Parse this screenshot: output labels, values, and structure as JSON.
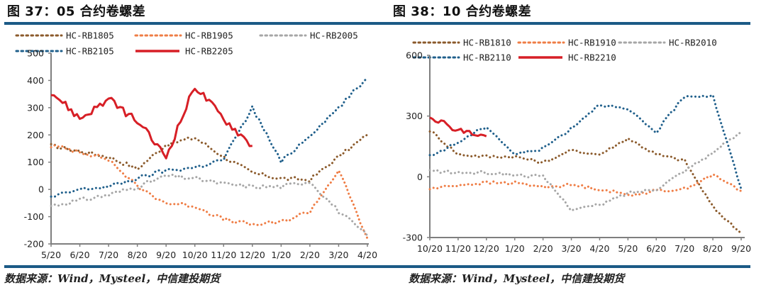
{
  "figures": [
    {
      "title": "图 37：05 合约卷螺差",
      "source": "数据来源：Wind，Mysteel，中信建投期货"
    },
    {
      "title": "图 38：10 合约卷螺差",
      "source": "数据来源：Wind，Mysteel，中信建投期货"
    }
  ],
  "colors": {
    "rule": "#1b5a86",
    "brown": "#8b5a2b",
    "orange": "#ef7d45",
    "gray": "#a6a6a6",
    "blue": "#1f5f8b",
    "red": "#d71f26",
    "axis": "#7f7f7f"
  },
  "chart_data": [
    {
      "type": "line",
      "title": "05合约卷螺差",
      "xlabel": "",
      "ylabel": "",
      "ylim": [
        -200,
        500
      ],
      "yticks": [
        -200,
        -100,
        0,
        100,
        200,
        300,
        400,
        500
      ],
      "categories": [
        "5/20",
        "6/20",
        "7/20",
        "8/20",
        "9/20",
        "10/20",
        "11/20",
        "12/20",
        "1/20",
        "2/20",
        "3/20",
        "4/20"
      ],
      "legend_position": "top",
      "grid": false,
      "series": [
        {
          "name": "HC-RB1805",
          "style": "dotted",
          "color": "#8b5a2b",
          "values": [
            160,
            140,
            120,
            75,
            165,
            190,
            120,
            60,
            40,
            35,
            120,
            200
          ]
        },
        {
          "name": "HC-RB1905",
          "style": "dotted",
          "color": "#ef7d45",
          "values": [
            160,
            140,
            110,
            10,
            -50,
            -60,
            -110,
            -130,
            -120,
            -80,
            70,
            -180
          ]
        },
        {
          "name": "HC-RB2005",
          "style": "dotted",
          "color": "#a6a6a6",
          "values": [
            -60,
            -40,
            -20,
            10,
            50,
            40,
            20,
            10,
            10,
            30,
            -80,
            -170
          ]
        },
        {
          "name": "HC-RB2105",
          "style": "dotted",
          "color": "#1f5f8b",
          "values": [
            -30,
            0,
            10,
            40,
            70,
            80,
            110,
            300,
            100,
            200,
            300,
            410
          ]
        },
        {
          "name": "HC-RB2205",
          "style": "solid",
          "color": "#d71f26",
          "values": [
            360,
            260,
            330,
            250,
            120,
            380,
            260,
            160,
            null,
            null,
            null,
            null
          ]
        }
      ]
    },
    {
      "type": "line",
      "title": "10合约卷螺差",
      "xlabel": "",
      "ylabel": "",
      "ylim": [
        -300,
        600
      ],
      "yticks": [
        -300,
        0,
        300,
        600
      ],
      "categories": [
        "10/20",
        "11/20",
        "12/20",
        "1/20",
        "2/20",
        "3/20",
        "4/20",
        "5/20",
        "6/20",
        "7/20",
        "8/20",
        "9/20"
      ],
      "legend_position": "top",
      "grid": false,
      "series": [
        {
          "name": "HC-RB1810",
          "style": "dotted",
          "color": "#8b5a2b",
          "values": [
            230,
            110,
            100,
            100,
            70,
            130,
            110,
            190,
            110,
            80,
            -150,
            -280
          ]
        },
        {
          "name": "HC-RB1910",
          "style": "dotted",
          "color": "#ef7d45",
          "values": [
            -60,
            -40,
            -30,
            -30,
            -50,
            -40,
            -60,
            -90,
            -70,
            -60,
            10,
            -70
          ]
        },
        {
          "name": "HC-RB2010",
          "style": "dotted",
          "color": "#a6a6a6",
          "values": [
            30,
            20,
            20,
            10,
            0,
            -160,
            -140,
            -80,
            -60,
            30,
            120,
            220
          ]
        },
        {
          "name": "HC-RB2110",
          "style": "dotted",
          "color": "#1f5f8b",
          "values": [
            100,
            170,
            250,
            110,
            140,
            240,
            360,
            330,
            220,
            400,
            400,
            -60
          ]
        },
        {
          "name": "HC-RB2210",
          "style": "solid",
          "color": "#d71f26",
          "values": [
            300,
            230,
            200,
            null,
            null,
            null,
            null,
            null,
            null,
            null,
            null,
            null
          ]
        }
      ]
    }
  ]
}
